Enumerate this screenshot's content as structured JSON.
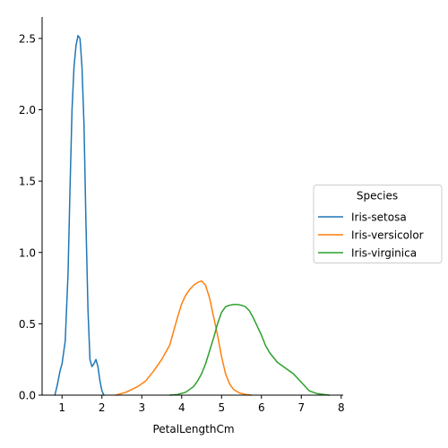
{
  "chart_data": {
    "type": "line",
    "title": "",
    "xlabel": "PetalLengthCm",
    "ylabel": "",
    "xlim": [
      0.5,
      8.05
    ],
    "ylim": [
      0,
      2.65
    ],
    "xticks": [
      1,
      2,
      3,
      4,
      5,
      6,
      7,
      8
    ],
    "xtick_labels": [
      "1",
      "2",
      "3",
      "4",
      "5",
      "6",
      "7",
      "8"
    ],
    "yticks": [
      0.0,
      0.5,
      1.0,
      1.5,
      2.0,
      2.5
    ],
    "ytick_labels": [
      "0.0",
      "0.5",
      "1.0",
      "1.5",
      "2.0",
      "2.5"
    ],
    "grid": false,
    "legend": {
      "title": "Species",
      "placement": "center-right-outside"
    },
    "series": [
      {
        "name": "Iris-setosa",
        "color": "#1f77b4",
        "x": [
          0.82,
          0.88,
          0.95,
          1.0,
          1.08,
          1.15,
          1.2,
          1.25,
          1.3,
          1.35,
          1.4,
          1.45,
          1.5,
          1.55,
          1.6,
          1.65,
          1.7,
          1.75,
          1.8,
          1.85,
          1.9,
          1.95,
          2.0,
          2.05
        ],
        "y": [
          0.0,
          0.07,
          0.17,
          0.22,
          0.38,
          0.85,
          1.45,
          2.0,
          2.3,
          2.45,
          2.52,
          2.5,
          2.3,
          1.9,
          1.2,
          0.6,
          0.25,
          0.2,
          0.22,
          0.25,
          0.2,
          0.1,
          0.03,
          0.0
        ]
      },
      {
        "name": "Iris-versicolor",
        "color": "#ff7f0e",
        "x": [
          2.35,
          2.6,
          2.9,
          3.1,
          3.3,
          3.5,
          3.7,
          3.8,
          3.9,
          4.0,
          4.1,
          4.2,
          4.3,
          4.4,
          4.5,
          4.6,
          4.7,
          4.8,
          4.9,
          5.0,
          5.1,
          5.2,
          5.3,
          5.45,
          5.6,
          5.75
        ],
        "y": [
          0.0,
          0.02,
          0.06,
          0.1,
          0.17,
          0.25,
          0.35,
          0.45,
          0.55,
          0.64,
          0.7,
          0.74,
          0.77,
          0.79,
          0.8,
          0.77,
          0.68,
          0.55,
          0.42,
          0.27,
          0.15,
          0.08,
          0.04,
          0.015,
          0.005,
          0.0
        ]
      },
      {
        "name": "Iris-virginica",
        "color": "#2ca02c",
        "x": [
          3.7,
          3.9,
          4.1,
          4.3,
          4.4,
          4.5,
          4.6,
          4.7,
          4.8,
          4.9,
          5.0,
          5.1,
          5.2,
          5.3,
          5.4,
          5.5,
          5.6,
          5.7,
          5.8,
          5.9,
          6.0,
          6.1,
          6.2,
          6.4,
          6.6,
          6.8,
          7.0,
          7.2,
          7.4,
          7.7
        ],
        "y": [
          0.0,
          0.005,
          0.02,
          0.06,
          0.1,
          0.15,
          0.22,
          0.31,
          0.4,
          0.5,
          0.58,
          0.62,
          0.63,
          0.635,
          0.635,
          0.63,
          0.62,
          0.59,
          0.54,
          0.48,
          0.42,
          0.35,
          0.3,
          0.23,
          0.19,
          0.15,
          0.09,
          0.03,
          0.01,
          0.0
        ]
      }
    ]
  }
}
